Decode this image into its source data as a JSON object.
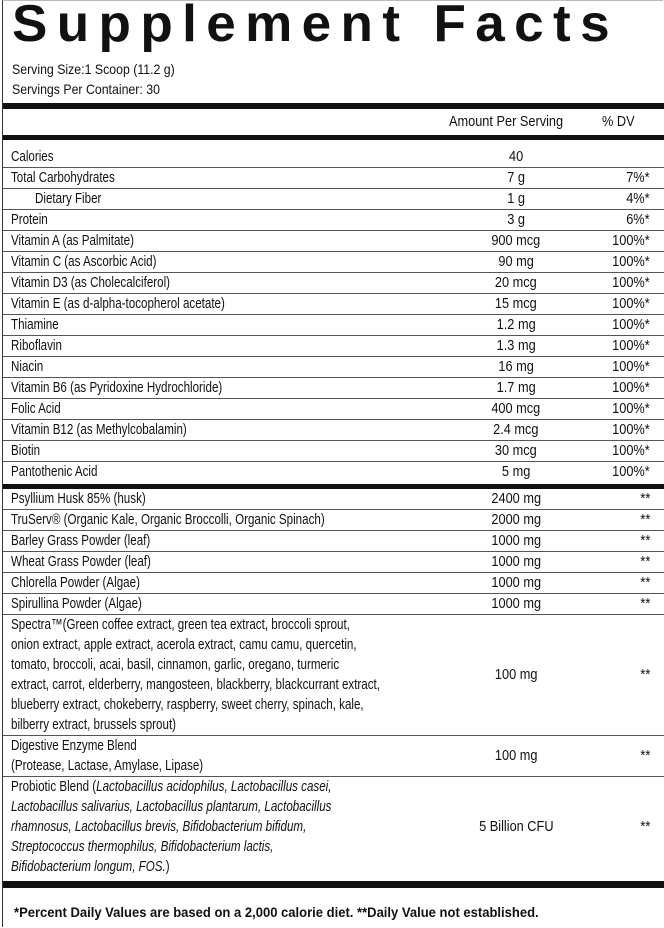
{
  "title": "Supplement Facts",
  "serving_size": "Serving Size:1 Scoop (11.2 g)",
  "servings_per_container": "Servings Per Container: 30",
  "header": {
    "amount": "Amount Per Serving",
    "dv": "% DV"
  },
  "nutrients": [
    {
      "name": "Calories",
      "amount": "40",
      "dv": ""
    },
    {
      "name": "Total Carbohydrates",
      "amount": "7 g",
      "dv": "7%*"
    },
    {
      "name": "Dietary Fiber",
      "amount": "1 g",
      "dv": "4%*"
    },
    {
      "name": "Protein",
      "amount": "3 g",
      "dv": "6%*"
    },
    {
      "name": "Vitamin A (as Palmitate)",
      "amount": "900 mcg",
      "dv": "100%*"
    },
    {
      "name": "Vitamin C (as Ascorbic Acid)",
      "amount": "90 mg",
      "dv": "100%*"
    },
    {
      "name": "Vitamin D3 (as Cholecalciferol)",
      "amount": "20 mcg",
      "dv": "100%*"
    },
    {
      "name": "Vitamin E (as d-alpha-tocopherol acetate)",
      "amount": "15 mcg",
      "dv": "100%*"
    },
    {
      "name": "Thiamine",
      "amount": "1.2 mg",
      "dv": "100%*"
    },
    {
      "name": "Riboflavin",
      "amount": "1.3 mg",
      "dv": "100%*"
    },
    {
      "name": "Niacin",
      "amount": "16 mg",
      "dv": "100%*"
    },
    {
      "name": "Vitamin B6 (as Pyridoxine Hydrochloride)",
      "amount": "1.7 mg",
      "dv": "100%*"
    },
    {
      "name": "Folic Acid",
      "amount": "400 mcg",
      "dv": "100%*"
    },
    {
      "name": "Vitamin B12 (as Methylcobalamin)",
      "amount": "2.4 mcg",
      "dv": "100%*"
    },
    {
      "name": "Biotin",
      "amount": "30 mcg",
      "dv": "100%*"
    },
    {
      "name": "Pantothenic Acid",
      "amount": "5 mg",
      "dv": "100%*"
    }
  ],
  "ingredients": [
    {
      "name": "Psyllium Husk 85% (husk)",
      "amount": "2400 mg",
      "dv": "**"
    },
    {
      "name": "TruServ® (Organic Kale, Organic Broccolli, Organic Spinach)",
      "amount": "2000 mg",
      "dv": "**"
    },
    {
      "name": "Barley Grass Powder (leaf)",
      "amount": "1000 mg",
      "dv": "**"
    },
    {
      "name": "Wheat Grass Powder (leaf)",
      "amount": "1000 mg",
      "dv": "**"
    },
    {
      "name": "Chlorella Powder (Algae)",
      "amount": "1000 mg",
      "dv": "**"
    },
    {
      "name": "Spirullina Powder (Algae)",
      "amount": "1000 mg",
      "dv": "**"
    }
  ],
  "spectra": {
    "lines": [
      "Spectra™(Green coffee extract, green tea extract, broccoli sprout,",
      "onion extract, apple extract, acerola extract, camu camu, quercetin,",
      "tomato, broccoli, acai, basil, cinnamon, garlic, oregano, turmeric",
      "extract, carrot, elderberry, mangosteen, blackberry, blackcurrant extract,",
      "blueberry extract, chokeberry, raspberry, sweet cherry, spinach, kale,",
      "bilberry extract, brussels sprout)"
    ],
    "amount": "100 mg",
    "dv": "**"
  },
  "enzyme": {
    "lines": [
      "Digestive Enzyme Blend",
      "(Protease, Lactase, Amylase, Lipase)"
    ],
    "amount": "100 mg",
    "dv": "**"
  },
  "probiotic": {
    "prefix": "Probiotic Blend (",
    "lines": [
      "Lactobacillus acidophilus, Lactobacillus casei,",
      "Lactobacillus salivarius, Lactobacillus plantarum, Lactobacillus",
      "rhamnosus, Lactobacillus brevis, Bifidobacterium bifidum,",
      "Streptococcus thermophilus, Bifidobacterium lactis,",
      "Bifidobacterium longum, FOS."
    ],
    "suffix": ")",
    "amount": "5 Billion CFU",
    "dv": "**"
  },
  "footnote": "*Percent Daily Values are based on a 2,000 calorie diet. **Daily Value not established."
}
